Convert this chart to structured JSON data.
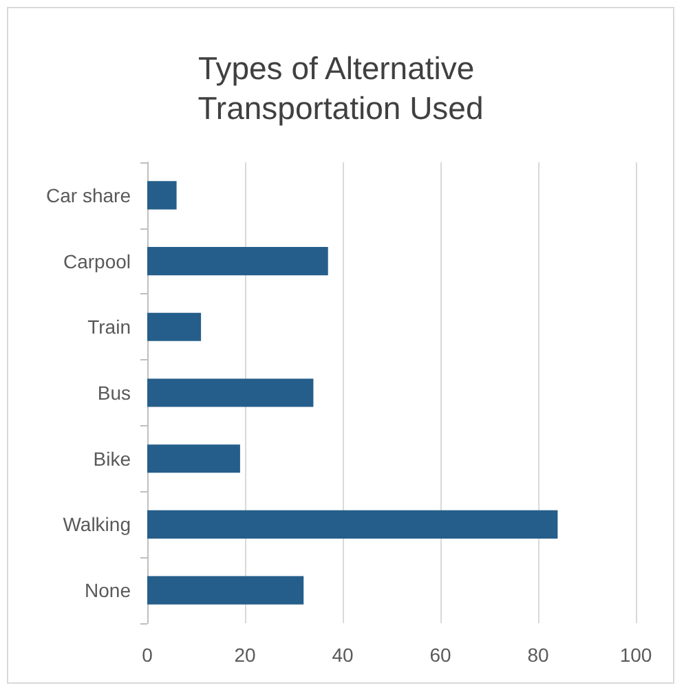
{
  "chart_data": {
    "type": "bar",
    "orientation": "horizontal",
    "title": "Types of Alternative Transportation Used",
    "categories": [
      "Car share",
      "Carpool",
      "Train",
      "Bus",
      "Bike",
      "Walking",
      "None"
    ],
    "values": [
      6,
      37,
      11,
      34,
      19,
      84,
      32
    ],
    "color": "#255e8a",
    "xlim": [
      0,
      100
    ],
    "xticks": [
      0,
      20,
      40,
      60,
      80,
      100
    ],
    "grid": "x"
  }
}
